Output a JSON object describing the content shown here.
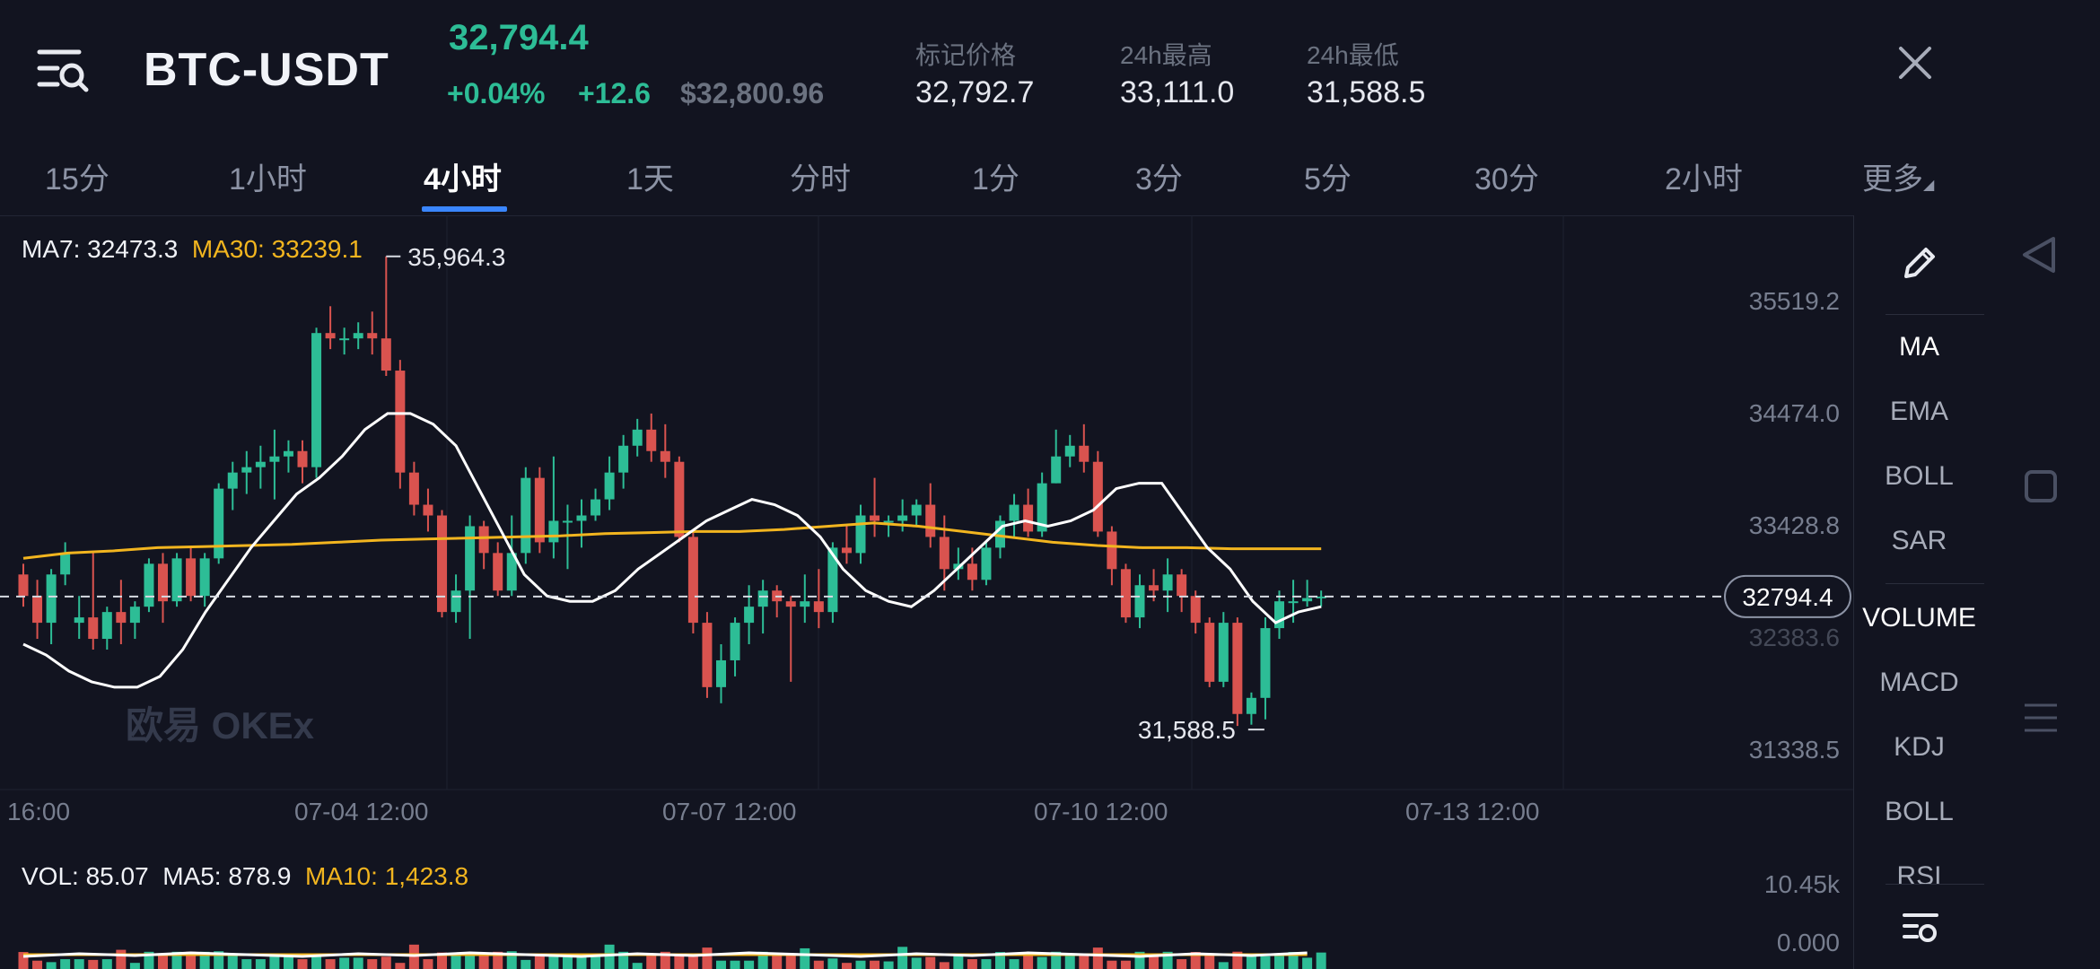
{
  "header": {
    "pair": "BTC-USDT",
    "last_price": "32,794.4",
    "change_pct": "+0.04%",
    "change_abs": "+12.6",
    "usd_price": "$32,800.96",
    "stats": [
      {
        "label": "标记价格",
        "value": "32,792.7"
      },
      {
        "label": "24h最高",
        "value": "33,111.0"
      },
      {
        "label": "24h最低",
        "value": "31,588.5"
      }
    ]
  },
  "tabs": [
    "15分",
    "1小时",
    "4小时",
    "1天",
    "分时",
    "1分",
    "3分",
    "5分",
    "30分",
    "2小时",
    "更多"
  ],
  "active_tab": "4小时",
  "chart": {
    "ma_legend": {
      "ma7": "MA7: 32473.3",
      "ma30": "MA30: 33239.1"
    },
    "y_labels": [
      "35519.2",
      "34474.0",
      "33428.8",
      "32383.6",
      "31338.5"
    ],
    "current_price_tag": "32794.4",
    "high_marker": "35,964.3",
    "low_marker": "31,588.5",
    "x_labels": [
      "16:00",
      "07-04 12:00",
      "07-07 12:00",
      "07-10 12:00",
      "07-13 12:00"
    ],
    "watermark": "欧易 OKEx",
    "vol_legend": {
      "vol": "VOL: 85.07",
      "ma5": "MA5: 878.9",
      "ma10": "MA10: 1,423.8"
    },
    "vol_y_labels": [
      "10.45k",
      "0.000"
    ]
  },
  "indicators": [
    "MA",
    "EMA",
    "BOLL",
    "SAR",
    "VOLUME",
    "MACD",
    "KDJ",
    "BOLL",
    "RSI"
  ],
  "icons": {
    "menu": "menu-search-icon",
    "close": "close-icon",
    "edit": "pencil-icon",
    "settings": "indicator-settings-icon"
  },
  "colors": {
    "up": "#2dbd96",
    "down": "#d9534f",
    "ma7": "#ffffff",
    "ma30": "#f2b51f",
    "accent": "#3a86ff",
    "background": "#121420"
  },
  "chart_data": {
    "type": "candlestick",
    "x_labels": [
      "16:00",
      "07-04 12:00",
      "07-07 12:00",
      "07-10 12:00",
      "07-13 12:00"
    ],
    "y_ticks": [
      35519.2,
      34474.0,
      33428.8,
      32383.6,
      31338.5
    ],
    "ylim": [
      31100,
      36100
    ],
    "current_price": 32794.4,
    "high": 35964.3,
    "low": 31588.5,
    "candles": [
      [
        33000,
        32800,
        33100,
        32700
      ],
      [
        32800,
        32550,
        32950,
        32400
      ],
      [
        32550,
        33000,
        33050,
        32350
      ],
      [
        33000,
        33200,
        33300,
        32900
      ],
      [
        32550,
        32600,
        32800,
        32400
      ],
      [
        32600,
        32400,
        33200,
        32300
      ],
      [
        32400,
        32650,
        32700,
        32300
      ],
      [
        32650,
        32550,
        32950,
        32350
      ],
      [
        32550,
        32700,
        32750,
        32400
      ],
      [
        32700,
        33100,
        33150,
        32650
      ],
      [
        33100,
        32750,
        33200,
        32550
      ],
      [
        32750,
        33150,
        33200,
        32700
      ],
      [
        33150,
        32800,
        33250,
        32750
      ],
      [
        32800,
        33150,
        33200,
        32700
      ],
      [
        33150,
        33800,
        33850,
        33100
      ],
      [
        33800,
        33950,
        34050,
        33600
      ],
      [
        33950,
        34000,
        34150,
        33750
      ],
      [
        34000,
        34050,
        34200,
        33800
      ],
      [
        34050,
        34100,
        34350,
        33700
      ],
      [
        34100,
        34150,
        34250,
        33950
      ],
      [
        34150,
        34000,
        34250,
        33850
      ],
      [
        34000,
        35250,
        35300,
        33900
      ],
      [
        35250,
        35200,
        35500,
        35100
      ],
      [
        35200,
        35200,
        35300,
        35050
      ],
      [
        35200,
        35250,
        35350,
        35100
      ],
      [
        35250,
        35200,
        35450,
        35050
      ],
      [
        35200,
        34900,
        35964.3,
        34850
      ],
      [
        34900,
        33950,
        35000,
        33800
      ],
      [
        33950,
        33650,
        34050,
        33550
      ],
      [
        33650,
        33550,
        33800,
        33400
      ],
      [
        33550,
        32650,
        33600,
        32600
      ],
      [
        32650,
        32850,
        33000,
        32550
      ],
      [
        32850,
        33450,
        33550,
        32400
      ],
      [
        33450,
        33200,
        33500,
        33050
      ],
      [
        33200,
        32850,
        33300,
        32800
      ],
      [
        32850,
        33200,
        33550,
        32800
      ],
      [
        33200,
        33900,
        34000,
        33100
      ],
      [
        33900,
        33300,
        34000,
        33200
      ],
      [
        33300,
        33500,
        34100,
        33150
      ],
      [
        33500,
        33500,
        33650,
        33050
      ],
      [
        33500,
        33550,
        33700,
        33250
      ],
      [
        33550,
        33700,
        33800,
        33500
      ],
      [
        33700,
        33950,
        34100,
        33600
      ],
      [
        33950,
        34200,
        34300,
        33800
      ],
      [
        34200,
        34350,
        34450,
        34100
      ],
      [
        34350,
        34150,
        34500,
        34050
      ],
      [
        34150,
        34050,
        34400,
        33900
      ],
      [
        34050,
        33350,
        34100,
        33300
      ],
      [
        33350,
        32550,
        33400,
        32450
      ],
      [
        32550,
        31950,
        32650,
        31850
      ],
      [
        31950,
        32200,
        32350,
        31800
      ],
      [
        32200,
        32550,
        32600,
        32050
      ],
      [
        32550,
        32700,
        32900,
        32350
      ],
      [
        32700,
        32850,
        32950,
        32450
      ],
      [
        32850,
        32750,
        32900,
        32600
      ],
      [
        32750,
        32700,
        32800,
        32000
      ],
      [
        32700,
        32750,
        33000,
        32550
      ],
      [
        32750,
        32650,
        33050,
        32500
      ],
      [
        32650,
        33250,
        33300,
        32550
      ],
      [
        33250,
        33200,
        33450,
        33100
      ],
      [
        33200,
        33550,
        33650,
        33100
      ],
      [
        33550,
        33500,
        33900,
        33350
      ],
      [
        33500,
        33500,
        33550,
        33350
      ],
      [
        33500,
        33550,
        33700,
        33400
      ],
      [
        33550,
        33650,
        33700,
        33450
      ],
      [
        33650,
        33350,
        33850,
        33250
      ],
      [
        33350,
        33050,
        33550,
        32850
      ],
      [
        33050,
        33100,
        33250,
        32950
      ],
      [
        33100,
        32950,
        33250,
        32850
      ],
      [
        32950,
        33250,
        33300,
        32900
      ],
      [
        33250,
        33500,
        33550,
        33150
      ],
      [
        33500,
        33650,
        33750,
        33350
      ],
      [
        33650,
        33400,
        33800,
        33350
      ],
      [
        33400,
        33850,
        33950,
        33350
      ],
      [
        33850,
        34100,
        34350,
        33850
      ],
      [
        34100,
        34200,
        34300,
        34000
      ],
      [
        34200,
        34050,
        34400,
        33950
      ],
      [
        34050,
        33400,
        34150,
        33350
      ],
      [
        33400,
        33050,
        33450,
        32900
      ],
      [
        33050,
        32600,
        33100,
        32550
      ],
      [
        32600,
        32900,
        33000,
        32500
      ],
      [
        32900,
        32850,
        33050,
        32750
      ],
      [
        32850,
        33000,
        33150,
        32650
      ],
      [
        33000,
        32800,
        33050,
        32650
      ],
      [
        32800,
        32550,
        32850,
        32450
      ],
      [
        32550,
        32000,
        32600,
        31950
      ],
      [
        32000,
        32550,
        32650,
        31950
      ],
      [
        32550,
        31700,
        32600,
        31588.5
      ],
      [
        31700,
        31850,
        31900,
        31600
      ],
      [
        31850,
        32500,
        32600,
        31650
      ],
      [
        32500,
        32750,
        32850,
        32400
      ],
      [
        32750,
        32750,
        32950,
        32550
      ],
      [
        32750,
        32780,
        32950,
        32700
      ],
      [
        32780,
        32794.4,
        32850,
        32700
      ]
    ],
    "ma7": [
      32350,
      32250,
      32100,
      32000,
      31950,
      31950,
      32050,
      32300,
      32650,
      32950,
      33250,
      33500,
      33750,
      33900,
      34100,
      34350,
      34500,
      34500,
      34400,
      34200,
      33800,
      33400,
      33000,
      32800,
      32750,
      32750,
      32850,
      33050,
      33200,
      33350,
      33500,
      33600,
      33700,
      33650,
      33550,
      33350,
      33050,
      32850,
      32750,
      32700,
      32850,
      33050,
      33250,
      33450,
      33500,
      33450,
      33500,
      33600,
      33800,
      33850,
      33850,
      33550,
      33250,
      33050,
      32750,
      32550,
      32650,
      32700
    ],
    "ma30": [
      33150,
      33200,
      33220,
      33250,
      33260,
      33270,
      33280,
      33300,
      33320,
      33330,
      33340,
      33350,
      33360,
      33380,
      33390,
      33400,
      33400,
      33420,
      33450,
      33480,
      33450,
      33400,
      33350,
      33300,
      33270,
      33250,
      33250,
      33240,
      33240,
      33240
    ],
    "volume_ylim": [
      0,
      10450
    ]
  }
}
